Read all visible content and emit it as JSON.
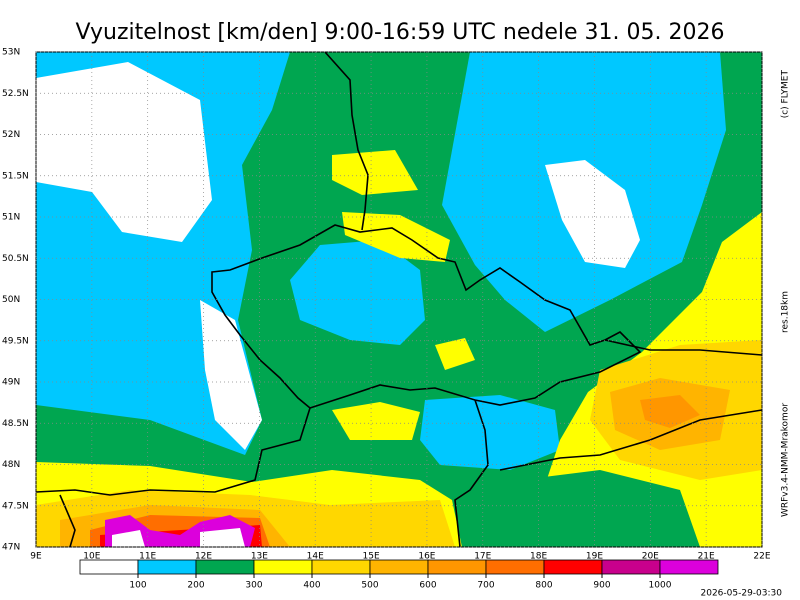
{
  "title": "Vyuzitelnost [km/den] 9:00-16:59 UTC  nedele 31. 05. 2026",
  "credit": "(c) FLYMET",
  "resolution": "res.18km",
  "model": "WRFv3.4-NMM-Mrakomor",
  "timestamp": "2026-05-29-03:30",
  "lat_ticks": [
    {
      "value": 47,
      "label": "47N"
    },
    {
      "value": 47.5,
      "label": "47.5N"
    },
    {
      "value": 48,
      "label": "48N"
    },
    {
      "value": 48.5,
      "label": "48.5N"
    },
    {
      "value": 49,
      "label": "49N"
    },
    {
      "value": 49.5,
      "label": "49.5N"
    },
    {
      "value": 50,
      "label": "50N"
    },
    {
      "value": 50.5,
      "label": "50.5N"
    },
    {
      "value": 51,
      "label": "51N"
    },
    {
      "value": 51.5,
      "label": "51.5N"
    },
    {
      "value": 52,
      "label": "52N"
    },
    {
      "value": 52.5,
      "label": "52.5N"
    },
    {
      "value": 53,
      "label": "53N"
    }
  ],
  "lon_ticks": [
    {
      "value": 9,
      "label": "9E"
    },
    {
      "value": 10,
      "label": "10E"
    },
    {
      "value": 11,
      "label": "11E"
    },
    {
      "value": 12,
      "label": "12E"
    },
    {
      "value": 13,
      "label": "13E"
    },
    {
      "value": 14,
      "label": "14E"
    },
    {
      "value": 15,
      "label": "15E"
    },
    {
      "value": 16,
      "label": "16E"
    },
    {
      "value": 17,
      "label": "17E"
    },
    {
      "value": 18,
      "label": "18E"
    },
    {
      "value": 19,
      "label": "19E"
    },
    {
      "value": 20,
      "label": "20E"
    },
    {
      "value": 21,
      "label": "21E"
    },
    {
      "value": 22,
      "label": "22E"
    }
  ],
  "legend": {
    "colors": [
      "#ffffff",
      "#00c8ff",
      "#00a650",
      "#ffff00",
      "#ffd700",
      "#ffb400",
      "#ff9600",
      "#ff6e00",
      "#ff0000",
      "#c8008c",
      "#dc00dc"
    ],
    "thresholds": [
      100,
      200,
      300,
      400,
      500,
      600,
      700,
      800,
      900,
      1000
    ]
  }
}
